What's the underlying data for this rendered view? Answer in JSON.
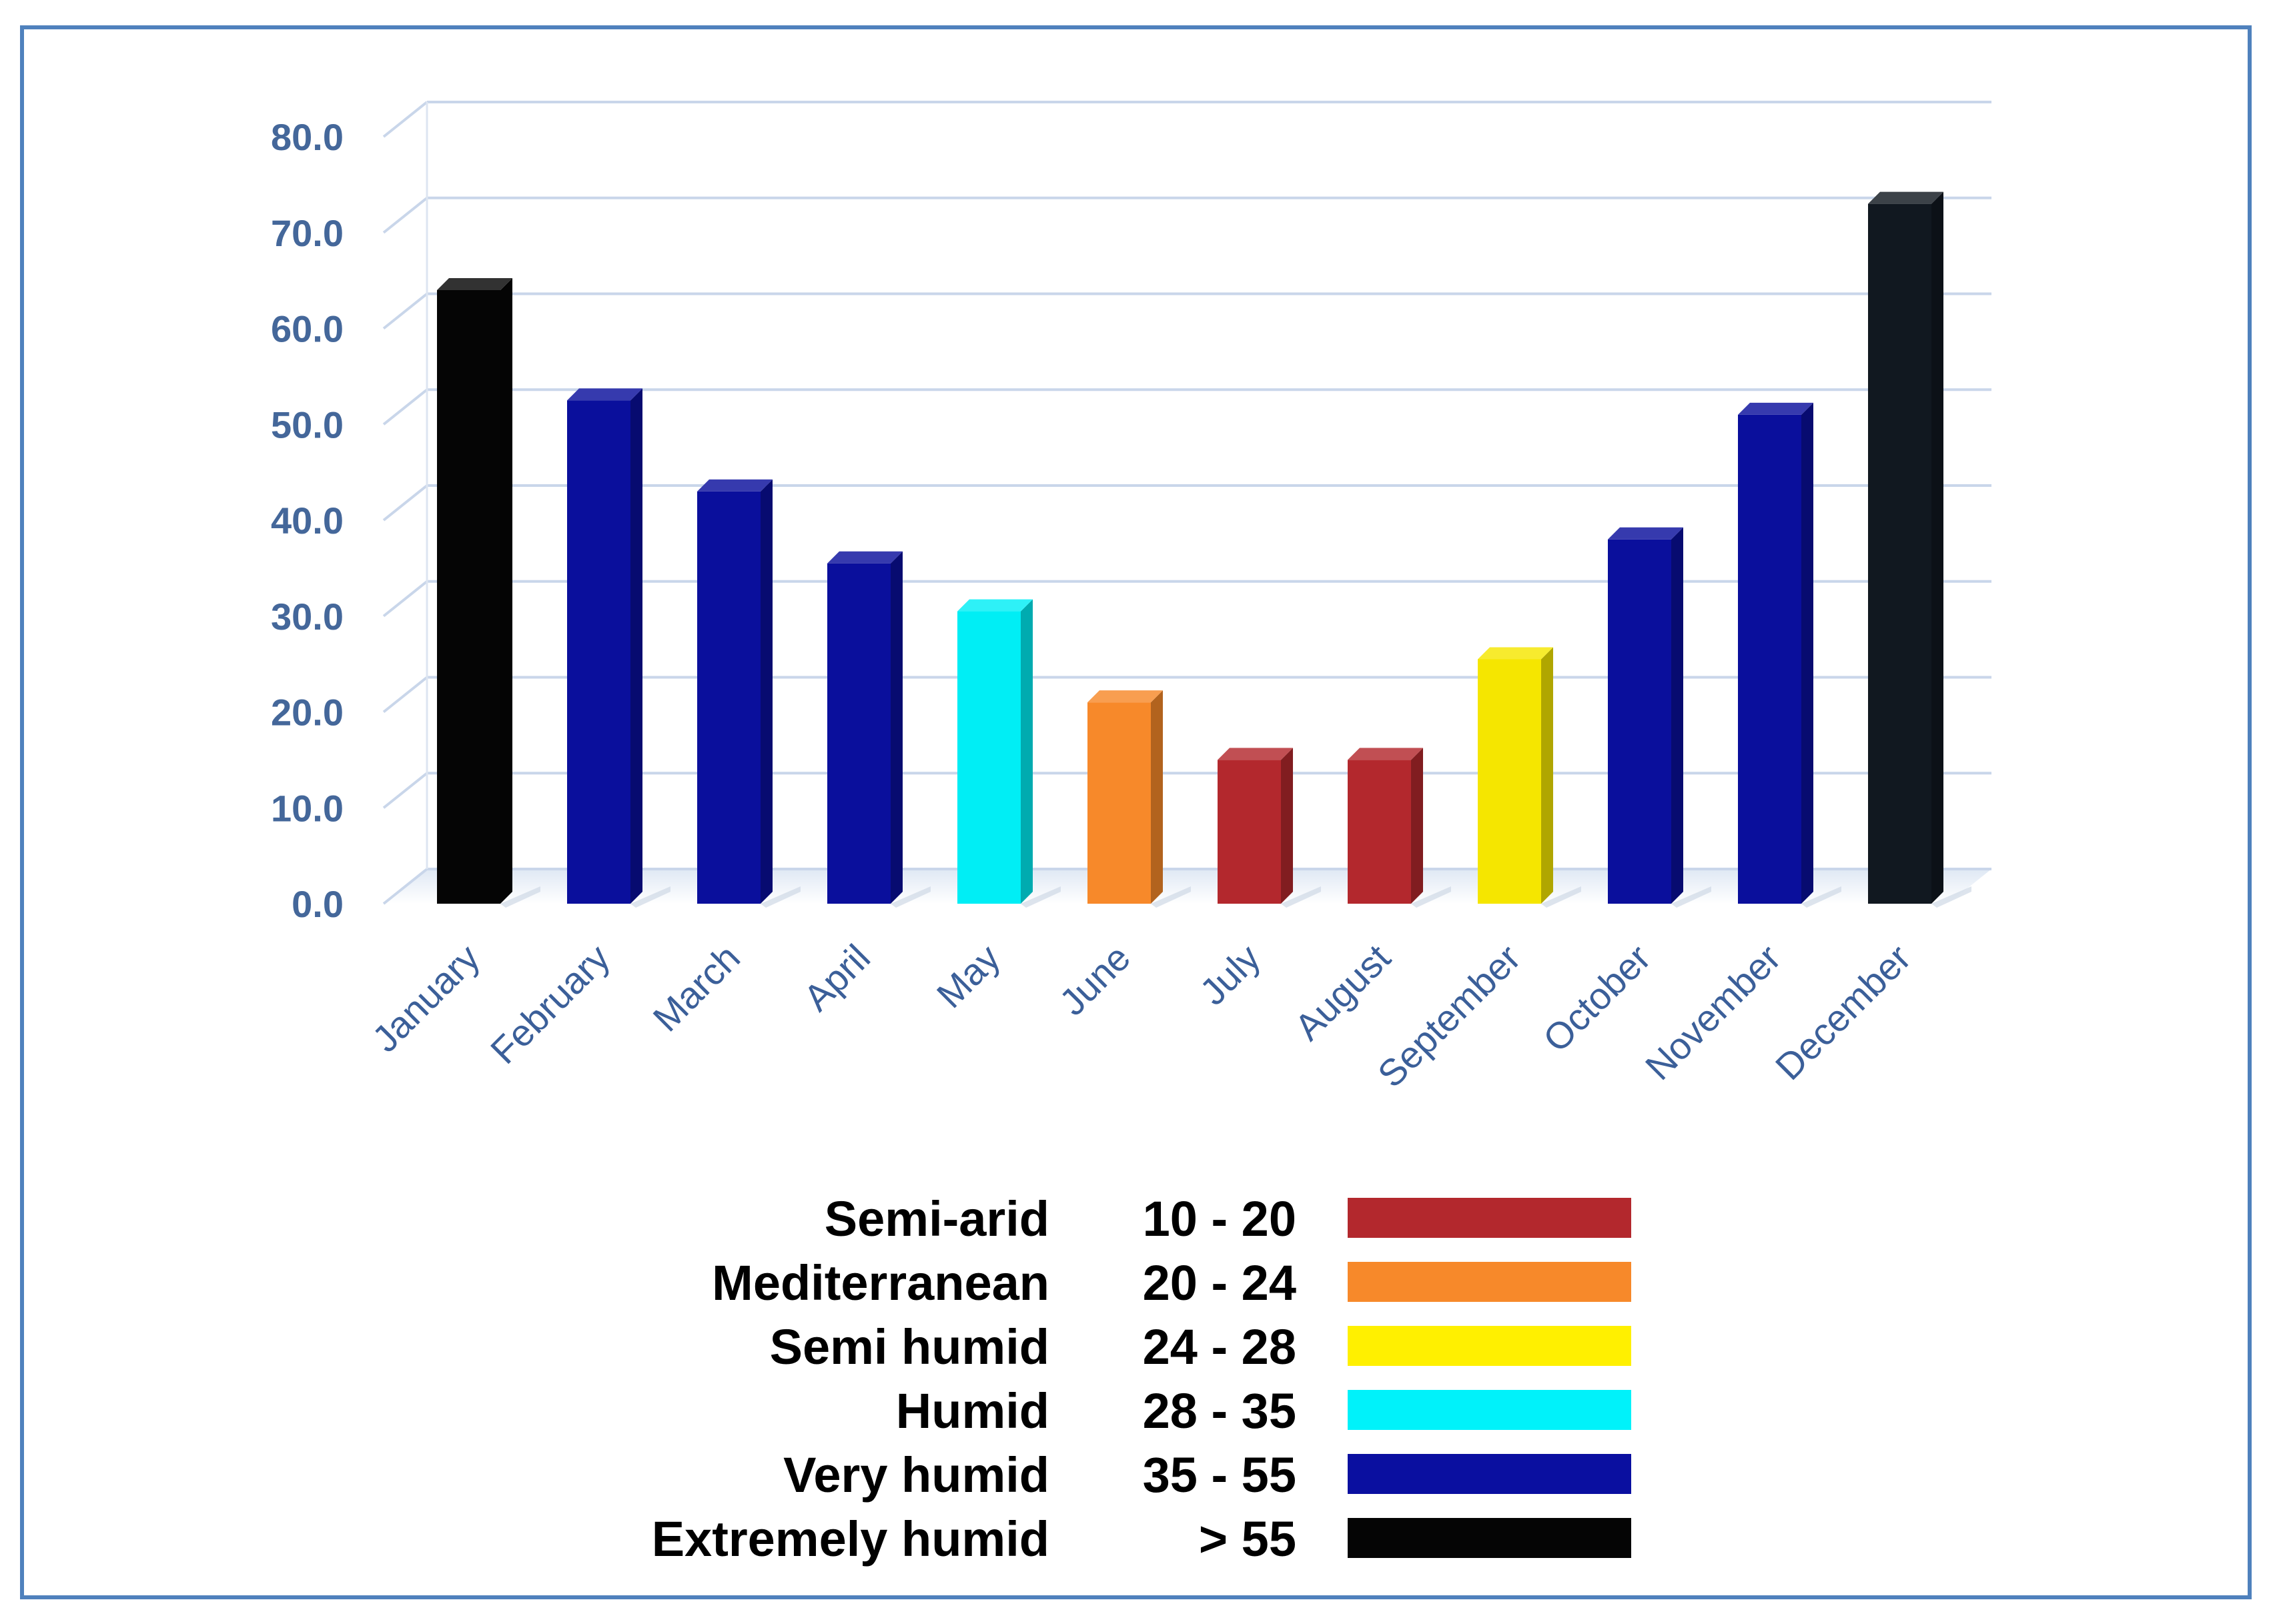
{
  "chart_data": {
    "type": "bar",
    "title": "",
    "xlabel": "",
    "ylabel": "",
    "ylim": [
      0,
      80
    ],
    "yticks": [
      "0.0",
      "10.0",
      "20.0",
      "30.0",
      "40.0",
      "50.0",
      "60.0",
      "70.0",
      "80.0"
    ],
    "grid": true,
    "categories": [
      "January",
      "February",
      "March",
      "April",
      "May",
      "June",
      "July",
      "August",
      "September",
      "October",
      "November",
      "December"
    ],
    "values": [
      64,
      52.5,
      43,
      35.5,
      30.5,
      21,
      15,
      15,
      25.5,
      38,
      51,
      73
    ],
    "bar_colors": [
      "#050505",
      "#0a0f9c",
      "#0a0f9c",
      "#0a0f9c",
      "#00eef5",
      "#f7892a",
      "#b3282d",
      "#b3282d",
      "#f5e600",
      "#0a0f9c",
      "#0a0f9c",
      "#111820"
    ]
  },
  "legend": [
    {
      "name": "Semi-arid",
      "range": "10 - 20",
      "color": "#b3282d"
    },
    {
      "name": "Mediterranean",
      "range": "20 - 24",
      "color": "#f7892a"
    },
    {
      "name": "Semi humid",
      "range": "24 - 28",
      "color": "#fff000"
    },
    {
      "name": "Humid",
      "range": "28 - 35",
      "color": "#00f2fa"
    },
    {
      "name": "Very humid",
      "range": "35 - 55",
      "color": "#0a0fa0"
    },
    {
      "name": "Extremely humid",
      "range": "> 55",
      "color": "#050505"
    }
  ]
}
